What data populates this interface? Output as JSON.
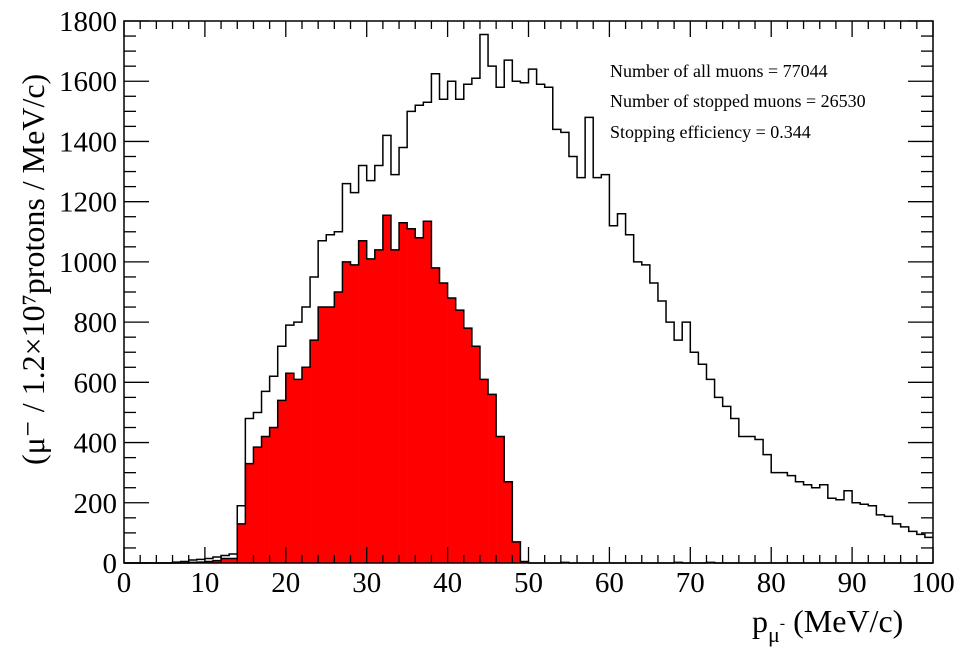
{
  "chart_data": {
    "type": "bar",
    "subtype": "histogram-overlay",
    "xlabel": "p",
    "xlabel_sub": "μ",
    "xlabel_sup": "-",
    "xlabel_units": "(MeV/c)",
    "ylabel": "(μ⁻ / 1.2×10⁷protons / MeV/c)",
    "xlim": [
      0,
      100
    ],
    "ylim": [
      0,
      1800
    ],
    "bin_width": 1,
    "x_ticks": [
      "0",
      "10",
      "20",
      "30",
      "40",
      "50",
      "60",
      "70",
      "80",
      "90",
      "100"
    ],
    "y_ticks": [
      "0",
      "200",
      "400",
      "600",
      "800",
      "1000",
      "1200",
      "1400",
      "1600",
      "1800"
    ],
    "grid": false,
    "series": [
      {
        "style": "outline",
        "color": "#000000",
        "values": [
          0,
          0,
          0,
          0,
          0,
          0,
          3,
          5,
          10,
          12,
          15,
          20,
          25,
          30,
          190,
          480,
          500,
          570,
          620,
          720,
          790,
          800,
          850,
          950,
          1070,
          1090,
          1100,
          1260,
          1230,
          1320,
          1270,
          1320,
          1420,
          1290,
          1380,
          1500,
          1520,
          1530,
          1625,
          1540,
          1600,
          1540,
          1590,
          1610,
          1755,
          1650,
          1580,
          1670,
          1600,
          1595,
          1640,
          1590,
          1580,
          1440,
          1430,
          1350,
          1280,
          1480,
          1280,
          1290,
          1120,
          1160,
          1090,
          1000,
          990,
          930,
          870,
          800,
          740,
          800,
          700,
          660,
          610,
          550,
          520,
          480,
          420,
          420,
          410,
          360,
          300,
          300,
          290,
          270,
          260,
          250,
          260,
          215,
          210,
          240,
          200,
          195,
          190,
          160,
          155,
          130,
          120,
          105,
          95,
          85
        ]
      },
      {
        "style": "filled",
        "color": "#ff0000",
        "values": [
          0,
          0,
          0,
          0,
          0,
          0,
          0,
          0,
          2,
          3,
          5,
          8,
          15,
          15,
          130,
          330,
          385,
          420,
          450,
          540,
          630,
          610,
          650,
          740,
          850,
          850,
          900,
          1000,
          990,
          1070,
          1010,
          1040,
          1155,
          1040,
          1130,
          1110,
          1080,
          1135,
          980,
          930,
          880,
          840,
          780,
          720,
          610,
          560,
          420,
          270,
          70,
          5,
          0,
          0,
          0,
          0,
          2,
          0,
          0,
          0,
          0,
          0,
          0,
          0,
          0,
          0,
          0,
          0,
          0,
          0,
          2,
          0,
          0,
          0,
          2,
          0,
          0,
          0,
          0,
          0,
          0,
          0,
          0,
          0,
          0,
          0,
          0,
          0,
          0,
          0,
          0,
          0,
          0,
          0,
          0,
          0,
          0,
          0,
          0,
          0,
          0,
          0
        ]
      }
    ],
    "annotations": [
      "Number of all muons = 77044",
      "Number of stopped muons = 26530",
      "Stopping efficiency = 0.344"
    ]
  }
}
